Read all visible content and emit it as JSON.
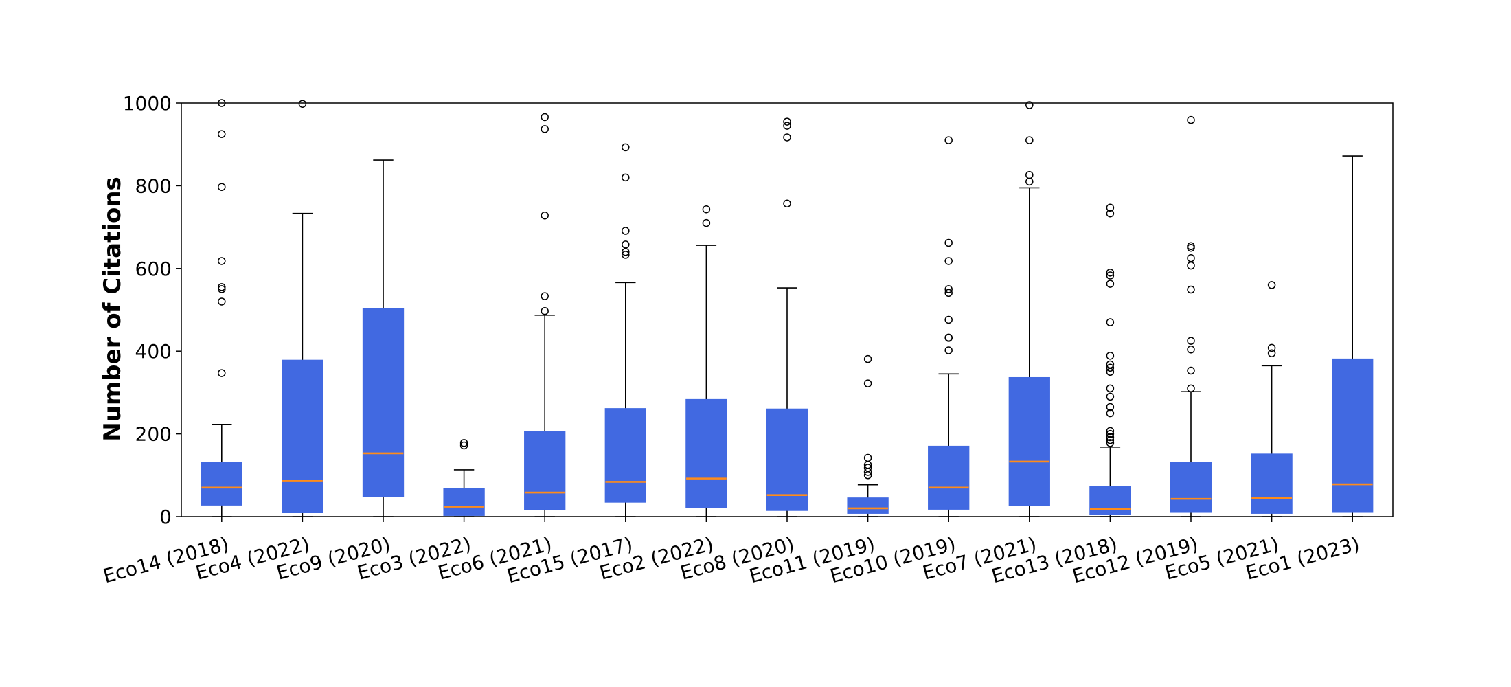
{
  "chart_data": {
    "type": "box",
    "title": "",
    "xlabel": "",
    "ylabel": "Number of Citations",
    "ylim": [
      0,
      1000
    ],
    "yticks": [
      0,
      200,
      400,
      600,
      800,
      1000
    ],
    "grid": false,
    "colors": {
      "box_fill": "#4169E1",
      "median": "#FF8C1A",
      "line": "#000000"
    },
    "boxes": [
      {
        "label": "Eco14 (2018)",
        "whisker_low": 0,
        "q1": 28,
        "median": 70,
        "q3": 130,
        "whisker_high": 223,
        "outliers": [
          347,
          520,
          550,
          555,
          618,
          797,
          925,
          1000
        ]
      },
      {
        "label": "Eco4 (2022)",
        "whisker_low": 0,
        "q1": 10,
        "median": 87,
        "q3": 378,
        "whisker_high": 733,
        "outliers": [
          998
        ]
      },
      {
        "label": "Eco9 (2020)",
        "whisker_low": 0,
        "q1": 48,
        "median": 153,
        "q3": 503,
        "whisker_high": 862,
        "outliers": []
      },
      {
        "label": "Eco3 (2022)",
        "whisker_low": 0,
        "q1": 3,
        "median": 24,
        "q3": 68,
        "whisker_high": 113,
        "outliers": [
          172,
          178
        ]
      },
      {
        "label": "Eco6 (2021)",
        "whisker_low": 0,
        "q1": 17,
        "median": 58,
        "q3": 205,
        "whisker_high": 487,
        "outliers": [
          497,
          533,
          728,
          937,
          966
        ]
      },
      {
        "label": "Eco15 (2017)",
        "whisker_low": 0,
        "q1": 35,
        "median": 84,
        "q3": 261,
        "whisker_high": 566,
        "outliers": [
          633,
          640,
          658,
          691,
          820,
          893
        ]
      },
      {
        "label": "Eco2 (2022)",
        "whisker_low": 0,
        "q1": 22,
        "median": 92,
        "q3": 283,
        "whisker_high": 656,
        "outliers": [
          710,
          743
        ]
      },
      {
        "label": "Eco8 (2020)",
        "whisker_low": 0,
        "q1": 15,
        "median": 52,
        "q3": 260,
        "whisker_high": 553,
        "outliers": [
          757,
          917,
          945,
          955
        ]
      },
      {
        "label": "Eco11 (2019)",
        "whisker_low": 0,
        "q1": 8,
        "median": 20,
        "q3": 45,
        "whisker_high": 77,
        "outliers": [
          100,
          108,
          118,
          125,
          142,
          322,
          381
        ]
      },
      {
        "label": "Eco10 (2019)",
        "whisker_low": 0,
        "q1": 18,
        "median": 70,
        "q3": 170,
        "whisker_high": 345,
        "outliers": [
          402,
          432,
          433,
          476,
          541,
          550,
          618,
          662,
          910
        ]
      },
      {
        "label": "Eco7 (2021)",
        "whisker_low": 0,
        "q1": 27,
        "median": 133,
        "q3": 336,
        "whisker_high": 795,
        "outliers": [
          810,
          826,
          910,
          995
        ]
      },
      {
        "label": "Eco13 (2018)",
        "whisker_low": 0,
        "q1": 5,
        "median": 18,
        "q3": 72,
        "whisker_high": 168,
        "outliers": [
          178,
          185,
          192,
          200,
          207,
          250,
          265,
          290,
          310,
          350,
          360,
          368,
          389,
          470,
          563,
          583,
          590,
          733,
          747
        ]
      },
      {
        "label": "Eco12 (2019)",
        "whisker_low": 0,
        "q1": 12,
        "median": 43,
        "q3": 130,
        "whisker_high": 302,
        "outliers": [
          310,
          353,
          404,
          425,
          549,
          607,
          625,
          650,
          654,
          959
        ]
      },
      {
        "label": "Eco5 (2021)",
        "whisker_low": 0,
        "q1": 8,
        "median": 45,
        "q3": 151,
        "whisker_high": 365,
        "outliers": [
          395,
          408,
          560
        ]
      },
      {
        "label": "Eco1 (2023)",
        "whisker_low": 0,
        "q1": 12,
        "median": 78,
        "q3": 381,
        "whisker_high": 872,
        "outliers": []
      }
    ]
  }
}
